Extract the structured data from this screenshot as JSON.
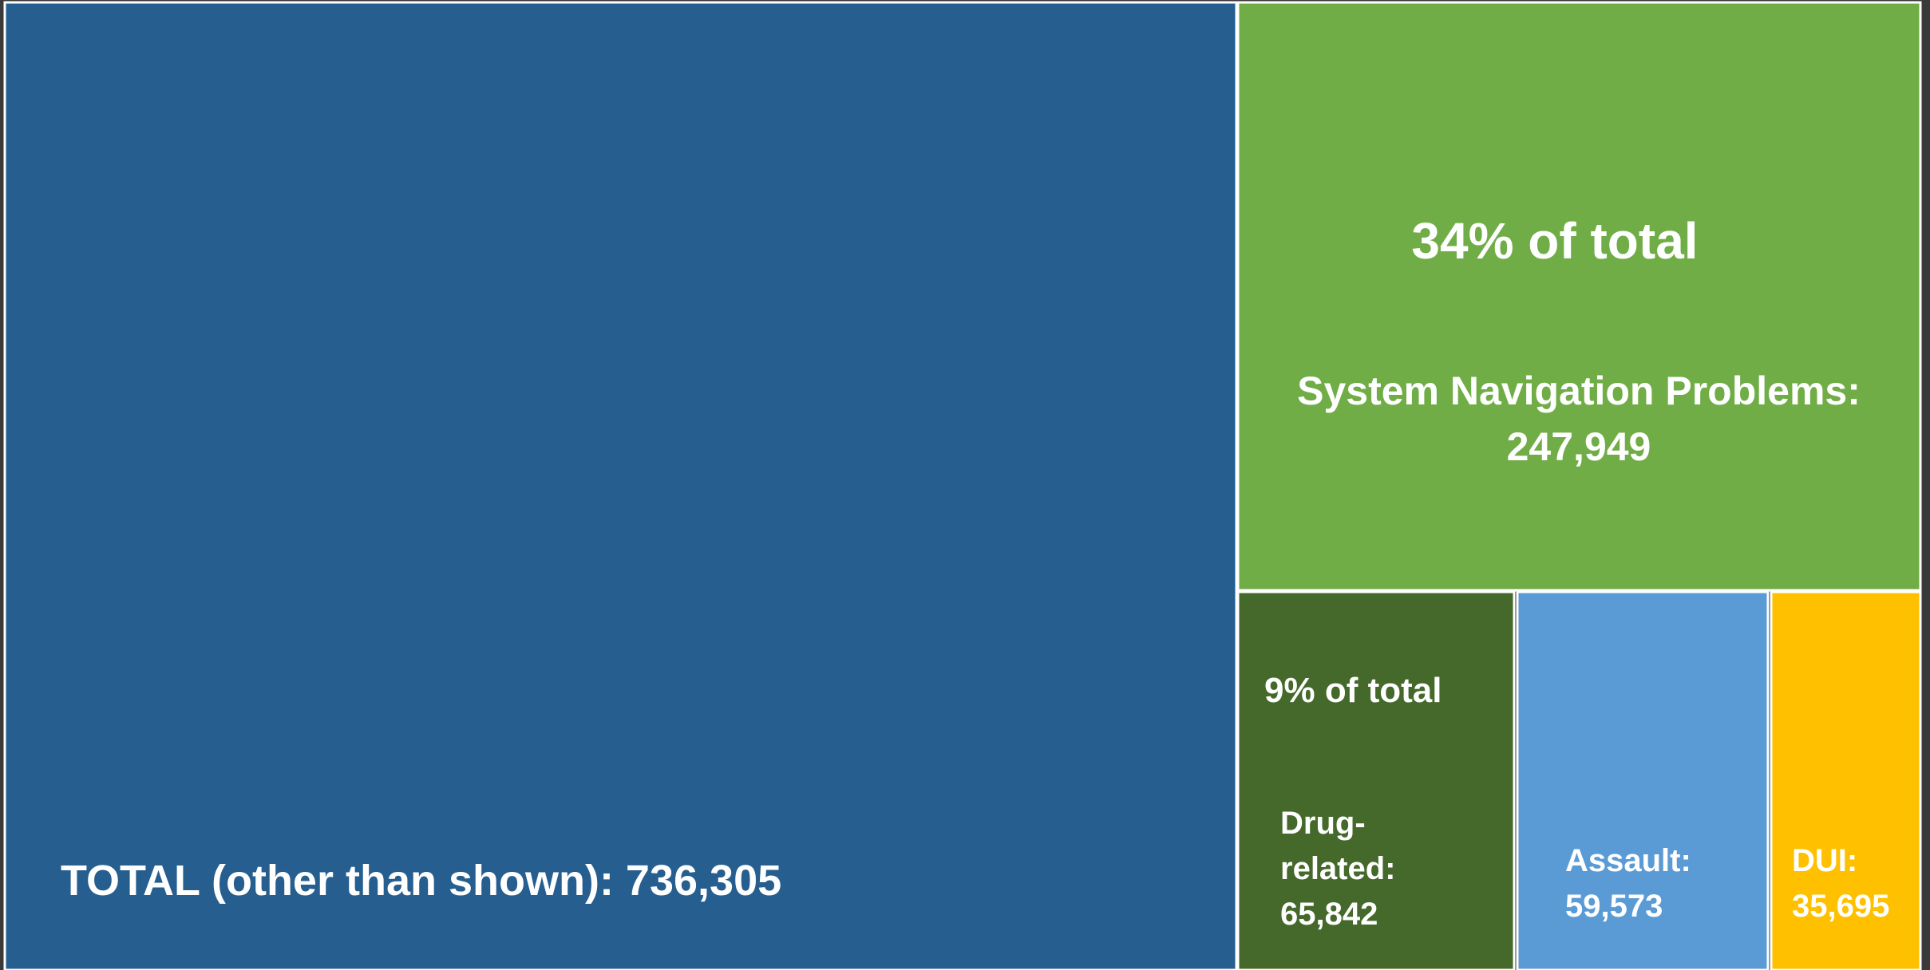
{
  "chart_data": {
    "type": "treemap",
    "tiles": [
      {
        "id": "other",
        "label": "TOTAL (other than shown): 736,305",
        "value": 736305,
        "color": "#255E8F"
      },
      {
        "id": "system-navigation",
        "label_lines": [
          "System Navigation Problems:",
          "247,949"
        ],
        "pct_label": "34% of total",
        "value": 247949,
        "color": "#70AD47"
      },
      {
        "id": "drug-related",
        "label_lines": [
          "Drug-",
          "related:",
          "65,842"
        ],
        "pct_label": "9% of total",
        "value": 65842,
        "color": "#44692B"
      },
      {
        "id": "assault",
        "label_lines": [
          "Assault:",
          "59,573"
        ],
        "value": 59573,
        "color": "#5B9BD5"
      },
      {
        "id": "dui",
        "label_lines": [
          "DUI:",
          "35,695"
        ],
        "value": 35695,
        "color": "#FFC000"
      }
    ]
  }
}
